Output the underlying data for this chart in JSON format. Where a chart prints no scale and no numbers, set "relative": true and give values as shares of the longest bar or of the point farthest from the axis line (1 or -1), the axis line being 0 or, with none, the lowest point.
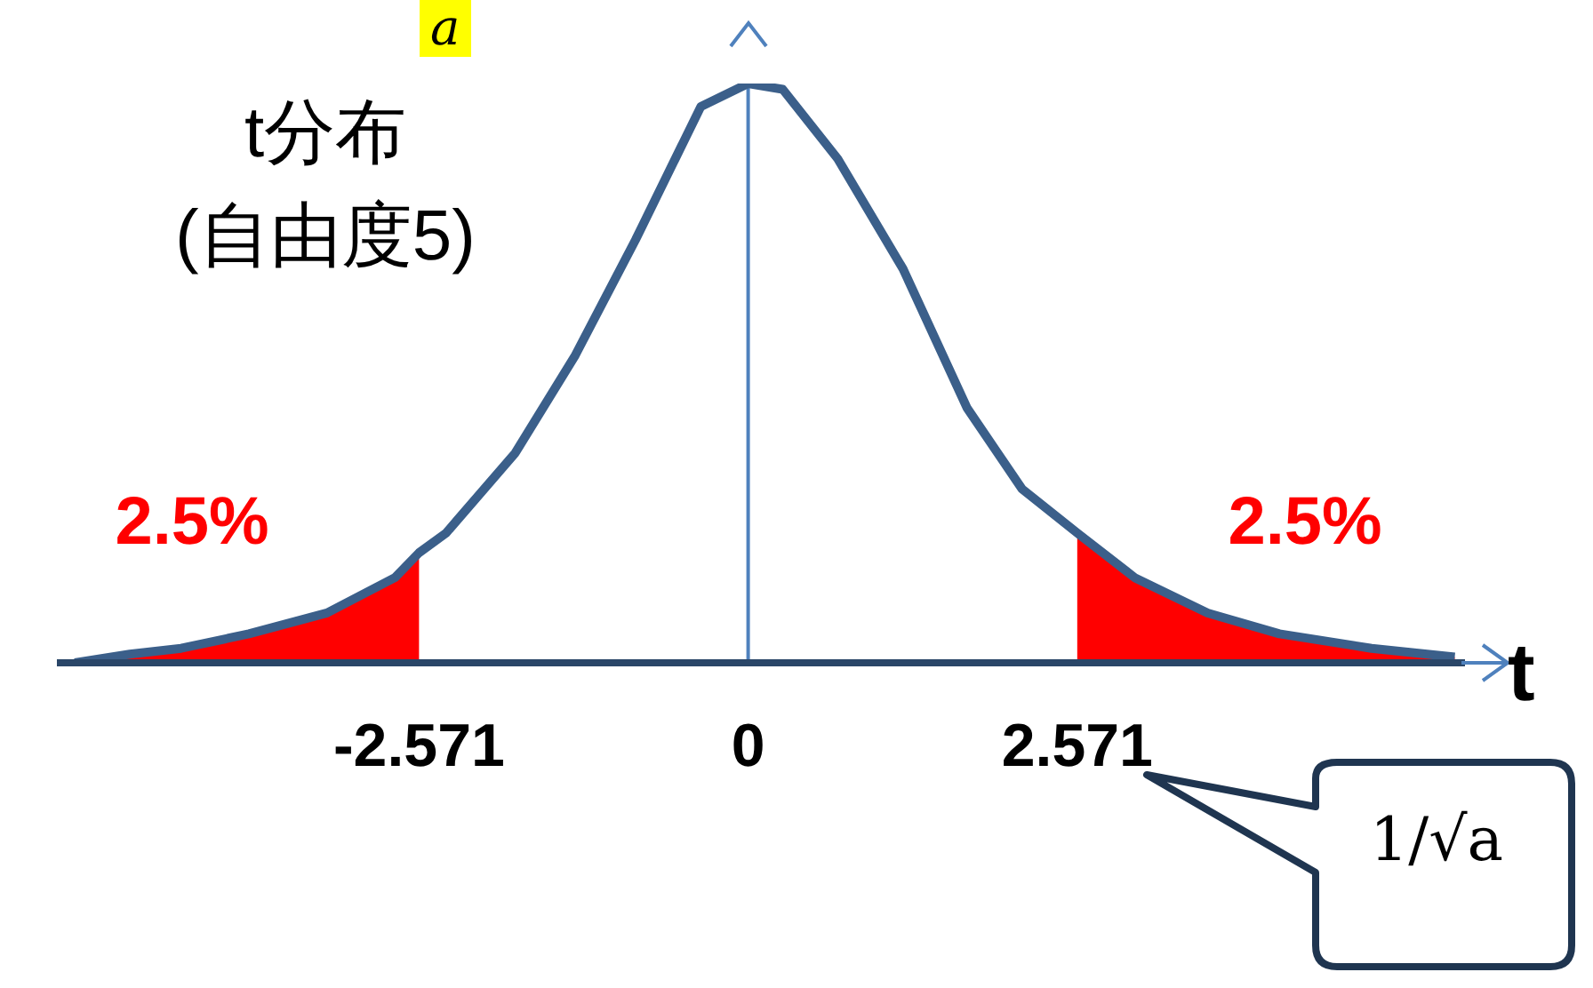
{
  "chart_data": {
    "type": "line",
    "title": "t分布",
    "subtitle": "(自由度5)",
    "xlabel": "t",
    "relative": true,
    "x": [
      -5.26,
      -4.83,
      -4.43,
      -3.9,
      -3.29,
      -2.76,
      -2.571,
      -2.36,
      -1.82,
      -1.35,
      -0.88,
      -0.37,
      0,
      0.27,
      0.7,
      1.21,
      1.71,
      2.14,
      2.571,
      3.02,
      3.59,
      4.15,
      4.87,
      5.52
    ],
    "series": [
      {
        "type": "area",
        "color": "#ff0000",
        "values": [
          0,
          0.015,
          0.025,
          0.05,
          0.086,
          0.147,
          0.19,
          null,
          null,
          null,
          null,
          null,
          null,
          null,
          null,
          null,
          null,
          null,
          null,
          null,
          null,
          null,
          null,
          null
        ]
      },
      {
        "type": "area",
        "color": "#ff0000",
        "values": [
          null,
          null,
          null,
          null,
          null,
          null,
          null,
          null,
          null,
          null,
          null,
          null,
          null,
          null,
          null,
          null,
          null,
          null,
          0.224,
          0.147,
          0.086,
          0.05,
          0.025,
          0.01
        ]
      },
      {
        "color": "#3b5f8a",
        "values": [
          0,
          0.015,
          0.025,
          0.05,
          0.086,
          0.147,
          0.19,
          0.224,
          0.362,
          0.531,
          0.73,
          0.96,
          1,
          0.99,
          0.87,
          0.68,
          0.44,
          0.3,
          0.224,
          0.147,
          0.086,
          0.05,
          0.025,
          0.01
        ]
      }
    ],
    "xlim": [
      -5.4,
      5.6
    ],
    "xticks": [
      -2.571,
      0,
      2.571
    ],
    "tick_labels": "x",
    "grid": false,
    "legend": false,
    "marker": "none",
    "ref_lines": [
      {
        "axis": "x",
        "value": 0,
        "color": "#4f81bd"
      }
    ],
    "annotations": [
      "a",
      "2.5%",
      "2.5%",
      "1/√a"
    ]
  }
}
